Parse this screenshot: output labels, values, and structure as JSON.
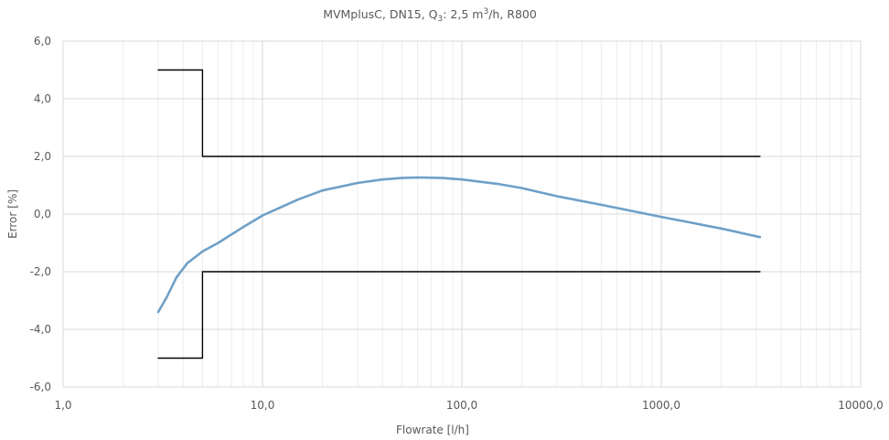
{
  "chart_data": {
    "type": "line",
    "title": {
      "prefix": "MVMplusC, DN15, Q",
      "q_subscript": "3",
      "mid": ": 2,5 m",
      "sup": "3",
      "suffix": "/h, R800"
    },
    "xlabel": "Flowrate [l/h]",
    "ylabel": "Error [%]",
    "x_scale": "log",
    "xlim": [
      1,
      10000
    ],
    "ylim": [
      -6,
      6
    ],
    "x_ticks": [
      1,
      10,
      100,
      1000,
      10000
    ],
    "x_tick_labels": [
      "1,0",
      "10,0",
      "100,0",
      "1000,0",
      "10000,0"
    ],
    "y_ticks": [
      -6,
      -4,
      -2,
      0,
      2,
      4,
      6
    ],
    "y_tick_labels": [
      "-6,0",
      "-4,0",
      "-2,0",
      "0,0",
      "2,0",
      "4,0",
      "6,0"
    ],
    "grid": {
      "major": true,
      "minor_x": true
    },
    "legend": "none",
    "series": [
      {
        "role": "upper-limit",
        "color": "#000000",
        "x": [
          3.0,
          5.0,
          5.0,
          3125
        ],
        "y": [
          5,
          5,
          2,
          2
        ]
      },
      {
        "role": "lower-limit",
        "color": "#000000",
        "x": [
          3.0,
          5.0,
          5.0,
          3125
        ],
        "y": [
          -5,
          -5,
          -2,
          -2
        ]
      },
      {
        "role": "error-curve",
        "color": "#6fa0c7",
        "x": [
          3.0,
          3.3,
          3.7,
          4.2,
          5.0,
          6.0,
          8.0,
          10.0,
          15.0,
          20.0,
          30.0,
          40.0,
          50.0,
          60.0,
          80.0,
          100.0,
          150.0,
          200.0,
          300.0,
          500.0,
          1000.0,
          2000.0,
          3125.0
        ],
        "y": [
          -3.4,
          -2.9,
          -2.2,
          -1.7,
          -1.3,
          -1.0,
          -0.45,
          -0.05,
          0.5,
          0.82,
          1.08,
          1.2,
          1.25,
          1.27,
          1.25,
          1.2,
          1.05,
          0.9,
          0.62,
          0.32,
          -0.1,
          -0.5,
          -0.8
        ]
      }
    ]
  }
}
